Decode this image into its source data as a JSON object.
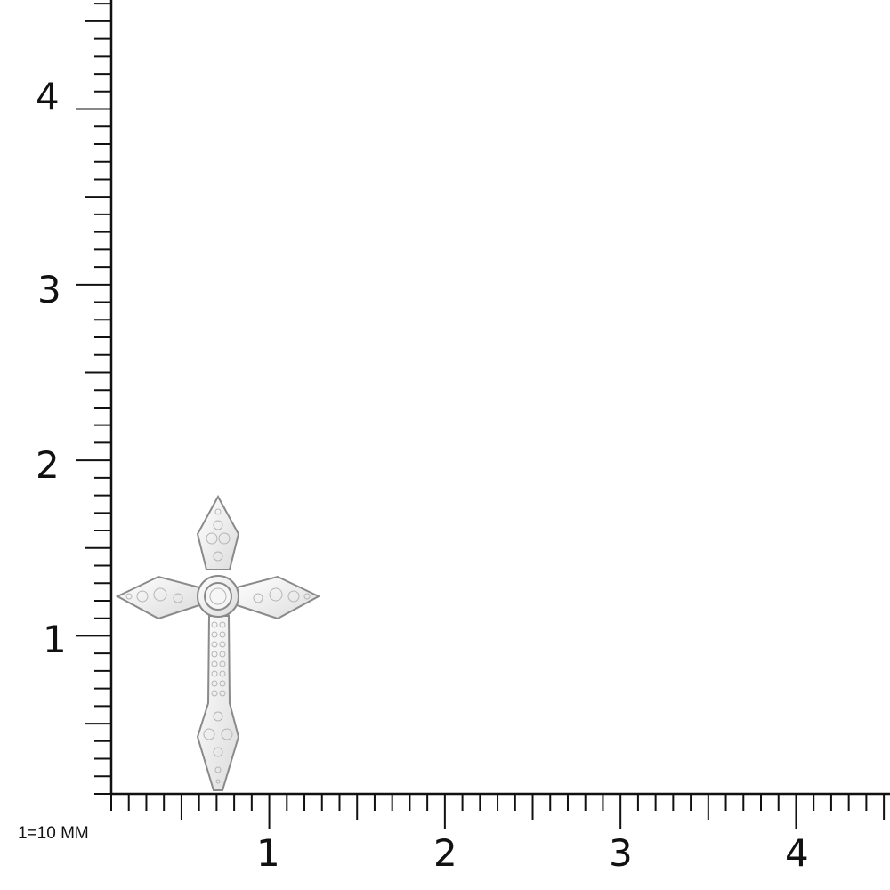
{
  "scale_label": "1=10 MM",
  "vertical_axis": {
    "labels": [
      "1",
      "2",
      "3",
      "4"
    ]
  },
  "horizontal_axis": {
    "labels": [
      "1",
      "2",
      "3",
      "4"
    ]
  },
  "product": {
    "type": "diamond cross pendant",
    "metal_color": "#e8e8e8"
  }
}
